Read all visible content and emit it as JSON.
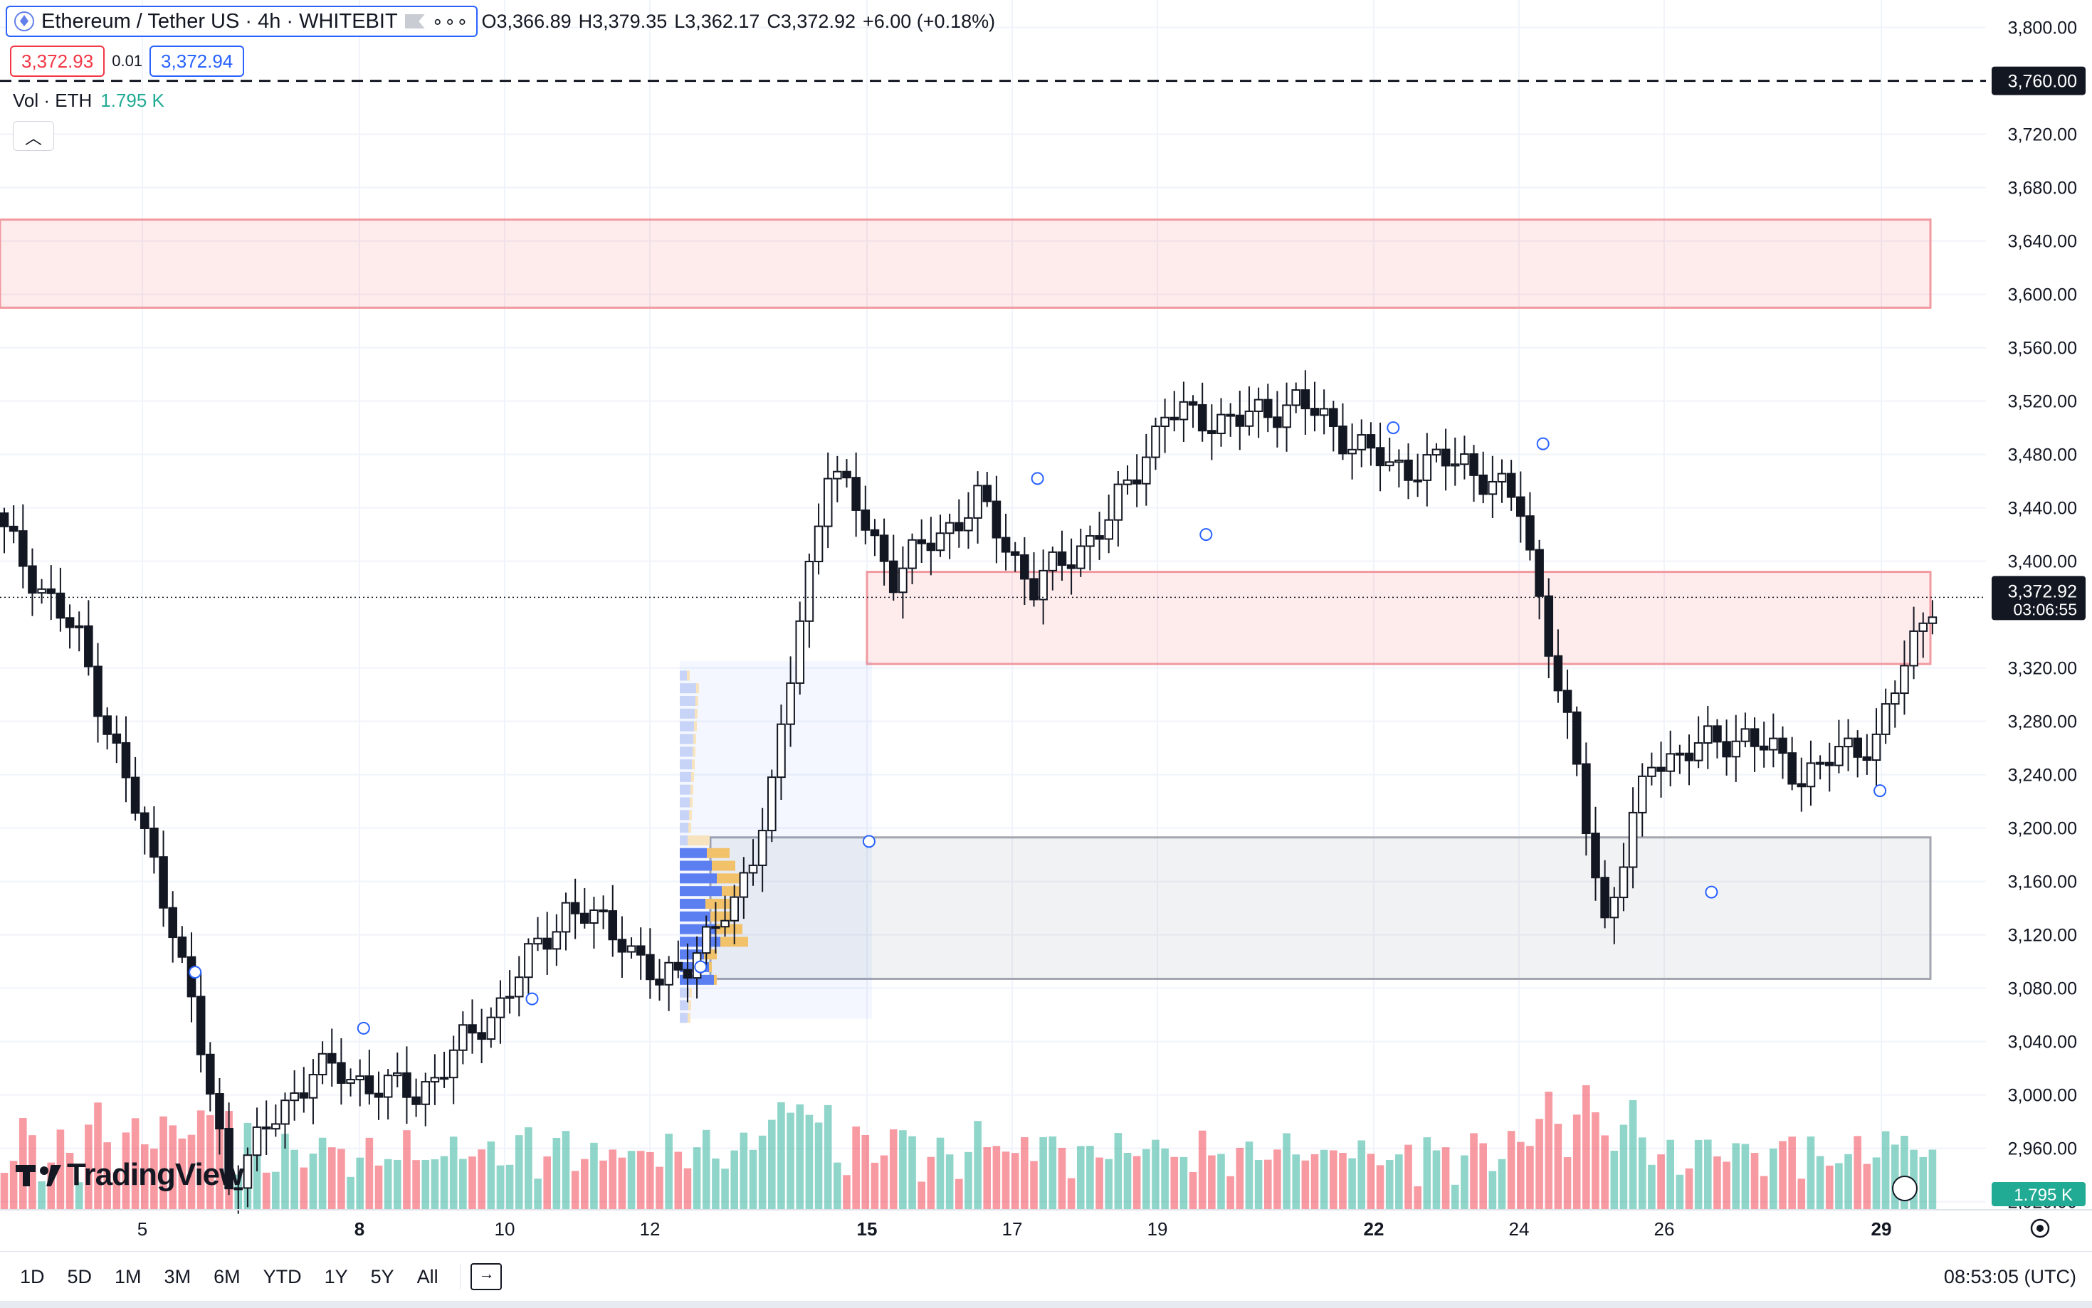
{
  "header": {
    "title": "Ethereum / Tether US · 4h · WHITEBIT",
    "ohlc": [
      {
        "k": "O",
        "v": "3,366.89"
      },
      {
        "k": "H",
        "v": "3,379.35"
      },
      {
        "k": "L",
        "v": "3,362.17"
      },
      {
        "k": "C",
        "v": "3,372.92"
      }
    ],
    "change": "+6.00 (+0.18%)"
  },
  "trade": {
    "bid": "3,372.93",
    "spread": "0.01",
    "ask": "3,372.94"
  },
  "volume_legend": {
    "label": "Vol · ETH",
    "value": "1.795 K"
  },
  "branding": "TradingView",
  "bottom_bar": {
    "ranges": [
      "1D",
      "5D",
      "1M",
      "3M",
      "6M",
      "YTD",
      "1Y",
      "5Y",
      "All"
    ],
    "clock": "08:53:05 (UTC)"
  },
  "colors": {
    "up": "#22ab94",
    "down": "#f23645",
    "candle_up": "#ffffff",
    "candle_down": "#131722",
    "zone_red": "#f7a9a9",
    "zone_gray": "#b2b5be",
    "accent": "#2962ff"
  },
  "chart_data": {
    "type": "candlestick",
    "symbol": "ETHUSDT",
    "timeframe": "4h",
    "x_ticks": [
      "5",
      "8",
      "10",
      "12",
      "15",
      "17",
      "19",
      "22",
      "24",
      "26",
      "29"
    ],
    "y_ticks": [
      "3,800.00",
      "3,720.00",
      "3,680.00",
      "3,640.00",
      "3,600.00",
      "3,560.00",
      "3,520.00",
      "3,480.00",
      "3,440.00",
      "3,400.00",
      "3,320.00",
      "3,280.00",
      "3,240.00",
      "3,200.00",
      "3,160.00",
      "3,120.00",
      "3,080.00",
      "3,040.00",
      "3,000.00",
      "2,960.00",
      "2,920.00"
    ],
    "ylim": [
      2920,
      3810
    ],
    "last_price": {
      "value": "3,372.92",
      "countdown": "03:06:55"
    },
    "horizontal_line": {
      "value": "3,760.00",
      "price": 3760
    },
    "volume_last": "1.795 K",
    "zones": [
      {
        "kind": "resistance",
        "from": 3590,
        "to": 3656
      },
      {
        "kind": "resistance",
        "from": 3323,
        "to": 3392
      },
      {
        "kind": "support",
        "from": 3087,
        "to": 3193
      }
    ]
  }
}
